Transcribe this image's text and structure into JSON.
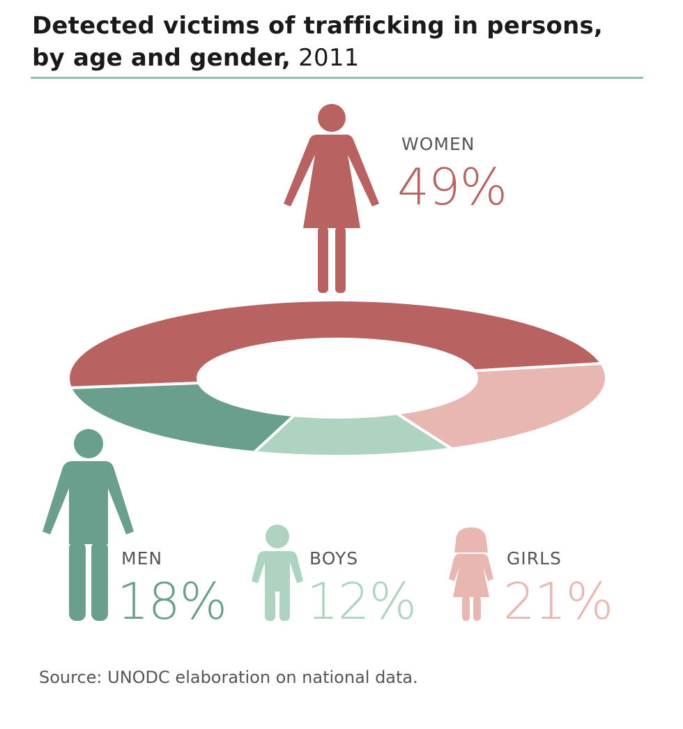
{
  "header": {
    "title_bold": "Detected victims of trafficking in persons,",
    "title_line2_bold": "by age and gender,",
    "title_year": "2011"
  },
  "chart_data": {
    "type": "pie",
    "variant": "donut",
    "categories": [
      "WOMEN",
      "MEN",
      "BOYS",
      "GIRLS"
    ],
    "values": [
      49,
      18,
      12,
      21
    ],
    "value_labels": [
      "49%",
      "18%",
      "12%",
      "21%"
    ],
    "colors": [
      "#b96262",
      "#6a9e8d",
      "#aed4c1",
      "#e8b7b2"
    ],
    "source": "Source: UNODC elaboration on national data."
  }
}
